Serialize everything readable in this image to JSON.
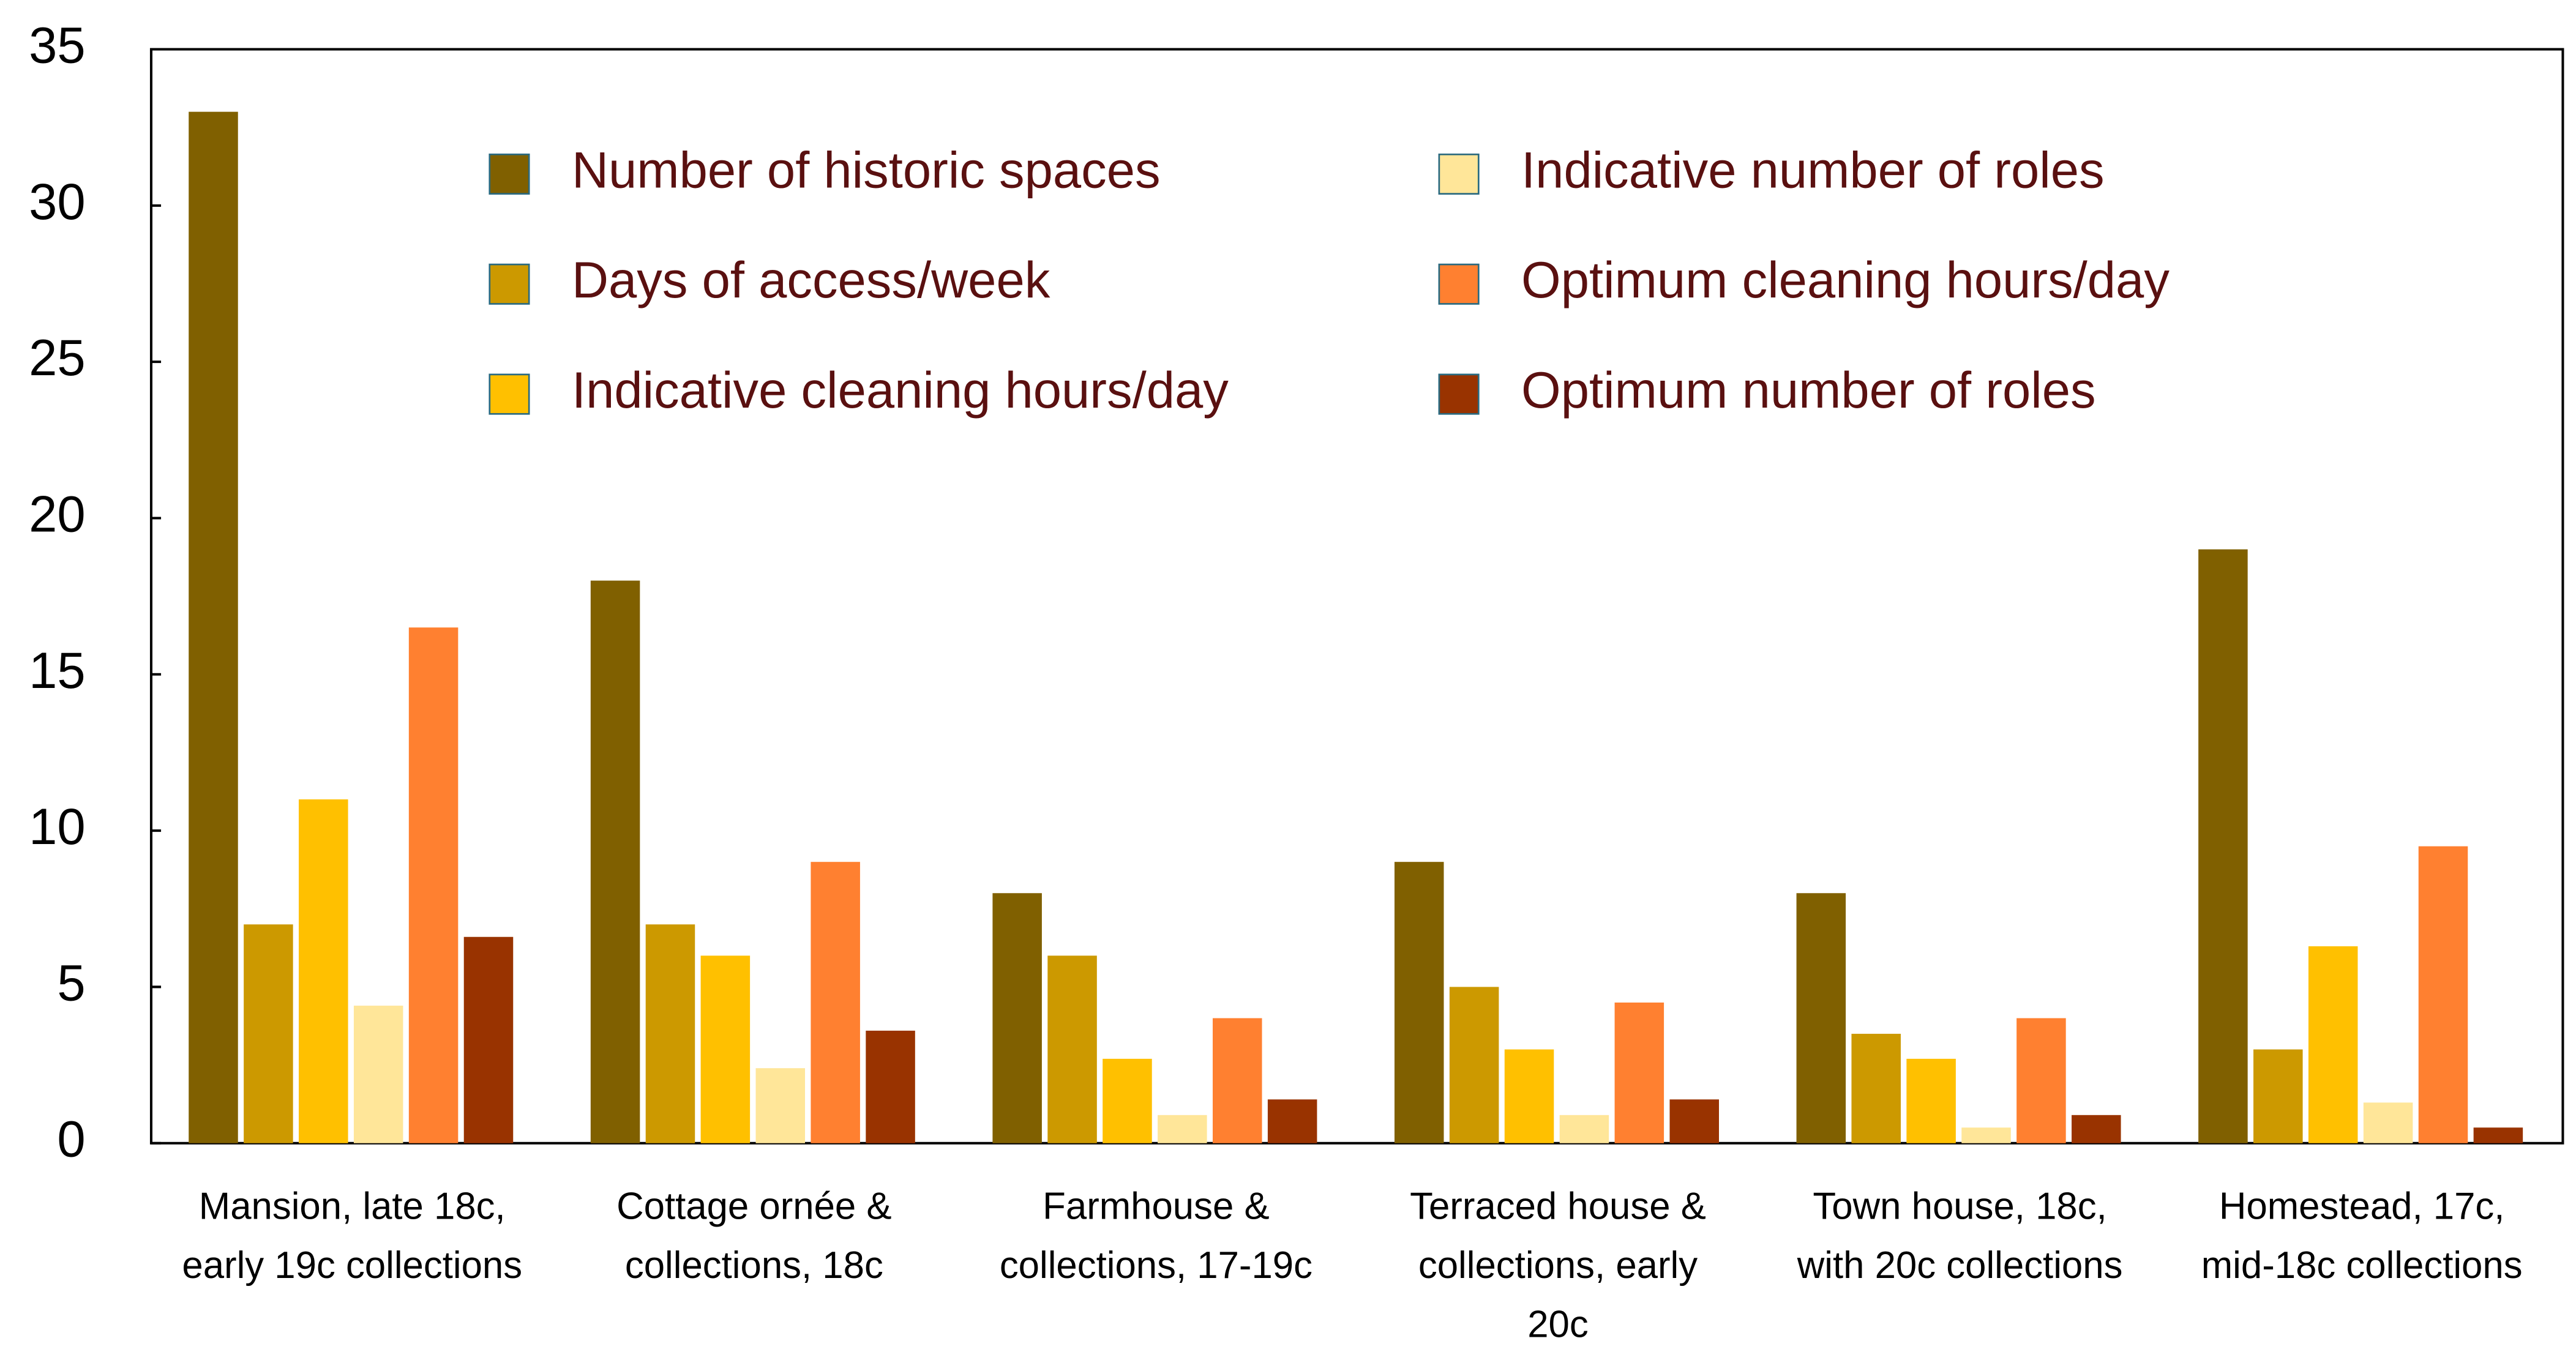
{
  "chart_data": {
    "type": "bar",
    "categories": [
      [
        "Mansion, late 18c,",
        "early 19c collections"
      ],
      [
        "Cottage ornée &",
        "collections, 18c"
      ],
      [
        "Farmhouse &",
        "collections, 17-19c"
      ],
      [
        "Terraced house &",
        "collections, early",
        "20c"
      ],
      [
        "Town house, 18c,",
        "with 20c collections"
      ],
      [
        "Homestead, 17c,",
        "mid-18c collections"
      ]
    ],
    "series": [
      {
        "name": "Number of historic spaces",
        "color": "#806000",
        "values": [
          33,
          18,
          8,
          9,
          8,
          19
        ]
      },
      {
        "name": "Days of access/week",
        "color": "#cc9900",
        "values": [
          7,
          7,
          6,
          5,
          3.5,
          3
        ]
      },
      {
        "name": "Indicative cleaning hours/day",
        "color": "#ffc000",
        "values": [
          11,
          6,
          2.7,
          3,
          2.7,
          6.3
        ]
      },
      {
        "name": "Indicative number of roles",
        "color": "#ffe699",
        "values": [
          4.4,
          2.4,
          0.9,
          0.9,
          0.5,
          1.3
        ]
      },
      {
        "name": "Optimum cleaning hours/day",
        "color": "#ff8030",
        "values": [
          16.5,
          9,
          4,
          4.5,
          4,
          9.5
        ]
      },
      {
        "name": "Optimum number of roles",
        "color": "#993300",
        "values": [
          6.6,
          3.6,
          1.4,
          1.4,
          0.9,
          0.5
        ]
      }
    ],
    "ylim": [
      0,
      35
    ],
    "yticks": [
      0,
      5,
      10,
      15,
      20,
      25,
      30,
      35
    ],
    "grid": false
  }
}
